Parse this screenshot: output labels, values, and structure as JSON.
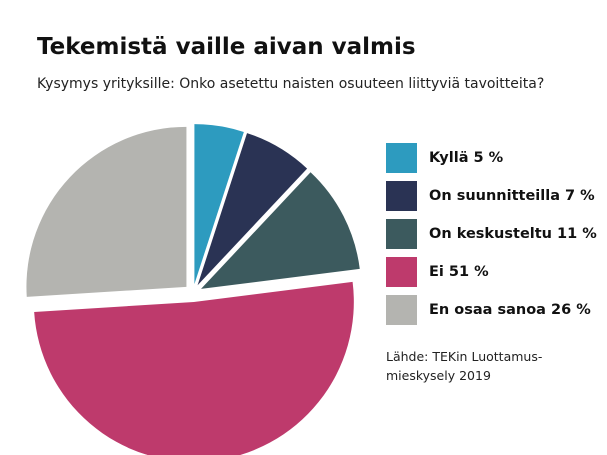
{
  "title": "Tekemistä vaille aivan valmis",
  "subtitle": "Kysymys yrityksille: Onko asetettu naisten osuuteen liittyviä tavoitteita?",
  "source_lines": [
    "Lähde: TEKin Luottamus-",
    "mieskysely 2019"
  ],
  "chart_data": {
    "type": "pie",
    "title": "Tekemistä vaille aivan valmis",
    "subtitle": "Kysymys yrityksille: Onko asetettu naisten osuuteen liittyviä tavoitteita?",
    "unit": "%",
    "legend_position": "right",
    "exploded": true,
    "slices": [
      {
        "label": "Kyllä",
        "value": 5,
        "legend_text": "Kyllä 5 %",
        "color": "#2d9bbf"
      },
      {
        "label": "On suunnitteilla",
        "value": 7,
        "legend_text": "On suunnitteilla 7 %",
        "color": "#2a3354"
      },
      {
        "label": "On keskusteltu",
        "value": 11,
        "legend_text": "On keskusteltu 11 %",
        "color": "#3c5a5e"
      },
      {
        "label": "Ei",
        "value": 51,
        "legend_text": "Ei 51 %",
        "color": "#be3a6c"
      },
      {
        "label": "En osaa sanoa",
        "value": 26,
        "legend_text": "En osaa sanoa 26 %",
        "color": "#b4b4b0"
      }
    ]
  }
}
